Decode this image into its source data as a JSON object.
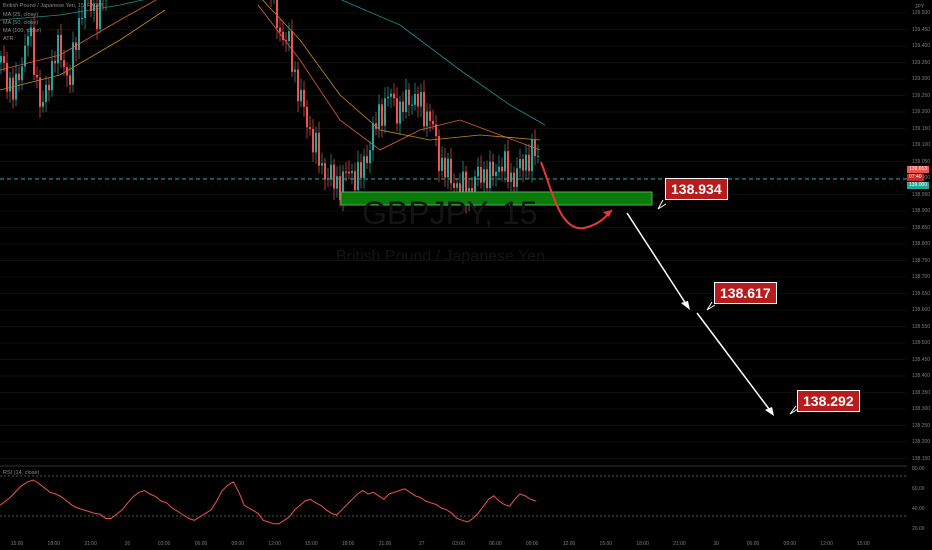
{
  "header": {
    "title": "British Pound / Japanese Yen, 15, FXCM",
    "indicators": [
      "MA (25, close)",
      "MA (50, close)",
      "MA (100, close)",
      "ATR"
    ]
  },
  "watermark": {
    "symbol": "GBPJPY, 15",
    "name": "British Pound / Japanese Yen"
  },
  "axis": {
    "currency": "JPY",
    "y_ticks": [
      "139.500",
      "139.450",
      "139.400",
      "139.350",
      "139.300",
      "139.250",
      "139.200",
      "139.150",
      "139.100",
      "139.050",
      "139.000",
      "138.950",
      "138.900",
      "138.850",
      "138.800",
      "138.750",
      "138.700",
      "138.650",
      "138.600",
      "138.550",
      "138.500",
      "138.450",
      "138.400",
      "138.350",
      "138.300",
      "138.250",
      "138.200",
      "138.150"
    ],
    "x_ticks": [
      "15:00",
      "18:00",
      "21:00",
      "26",
      "03:00",
      "06:00",
      "09:00",
      "12:00",
      "15:00",
      "18:00",
      "21:00",
      "27",
      "03:00",
      "06:00",
      "09:00",
      "12:00",
      "15:00",
      "18:00",
      "21:00",
      "30",
      "06:00",
      "09:00",
      "12:00",
      "15:00"
    ],
    "price_labels": {
      "last": "139.013",
      "time": "07:40",
      "line": "139.000"
    }
  },
  "rsi": {
    "label": "RSI (14, close)",
    "ticks": [
      "80.00",
      "60.00",
      "40.00",
      "20.00"
    ]
  },
  "callouts": [
    {
      "text": "138.934",
      "name": "target-1-callout"
    },
    {
      "text": "138.617",
      "name": "target-2-callout"
    },
    {
      "text": "138.292",
      "name": "target-3-callout"
    }
  ],
  "colors": {
    "background": "#000000",
    "candle_up": "#26a69a",
    "candle_down": "#ef5350",
    "zone_fill": "#0a7a0a",
    "zone_border": "#4caf50",
    "dashed_line": "#26a69a",
    "ma25": "#ff7043",
    "ma50": "#e8a317",
    "ma100": "#26a69a",
    "rsi_line": "#ef5350",
    "callout_bg": "#b71c1c"
  },
  "chart_data": {
    "type": "candlestick",
    "title": "British Pound / Japanese Yen, 15, FXCM",
    "ylim": [
      138.15,
      139.52
    ],
    "horizontal_line": 139.0,
    "zone": [
      138.934,
      138.97
    ],
    "projected_targets": [
      138.934,
      138.617,
      138.292
    ],
    "price_path": [
      139.35,
      139.25,
      139.45,
      139.2,
      139.4,
      139.3,
      139.55,
      139.5,
      139.6,
      139.7,
      139.65,
      139.75,
      139.8,
      139.7,
      139.6,
      139.45,
      139.4,
      139.25,
      139.15,
      139.05,
      139.0,
      138.98,
      139.02,
      139.0,
      139.1,
      139.2,
      139.25,
      139.2,
      139.25,
      139.22,
      139.18,
      139.05,
      139.0,
      138.97,
      138.96,
      139.02,
      139.0,
      139.05,
      139.0,
      139.03,
      139.08,
      139.05
    ],
    "rsi_values": [
      45,
      50,
      55,
      62,
      68,
      72,
      74,
      70,
      65,
      60,
      58,
      55,
      50,
      45,
      42,
      40,
      38,
      36,
      35,
      30,
      30,
      35,
      40,
      48,
      55,
      60,
      62,
      58,
      55,
      50,
      48,
      42,
      38,
      34,
      30,
      28,
      32,
      36,
      40,
      50,
      62,
      68,
      72,
      60,
      45,
      36,
      28,
      26,
      24,
      24,
      28,
      32,
      40,
      45,
      50,
      52,
      48,
      45,
      40,
      36,
      34,
      40,
      46,
      52,
      58,
      62,
      58,
      60,
      56,
      52,
      58,
      60,
      62,
      64,
      60,
      56,
      54,
      50,
      48,
      46,
      42,
      40,
      36,
      30,
      28,
      26,
      30,
      36,
      44,
      52,
      56,
      50,
      46,
      44,
      52,
      58,
      56,
      52,
      50
    ]
  }
}
